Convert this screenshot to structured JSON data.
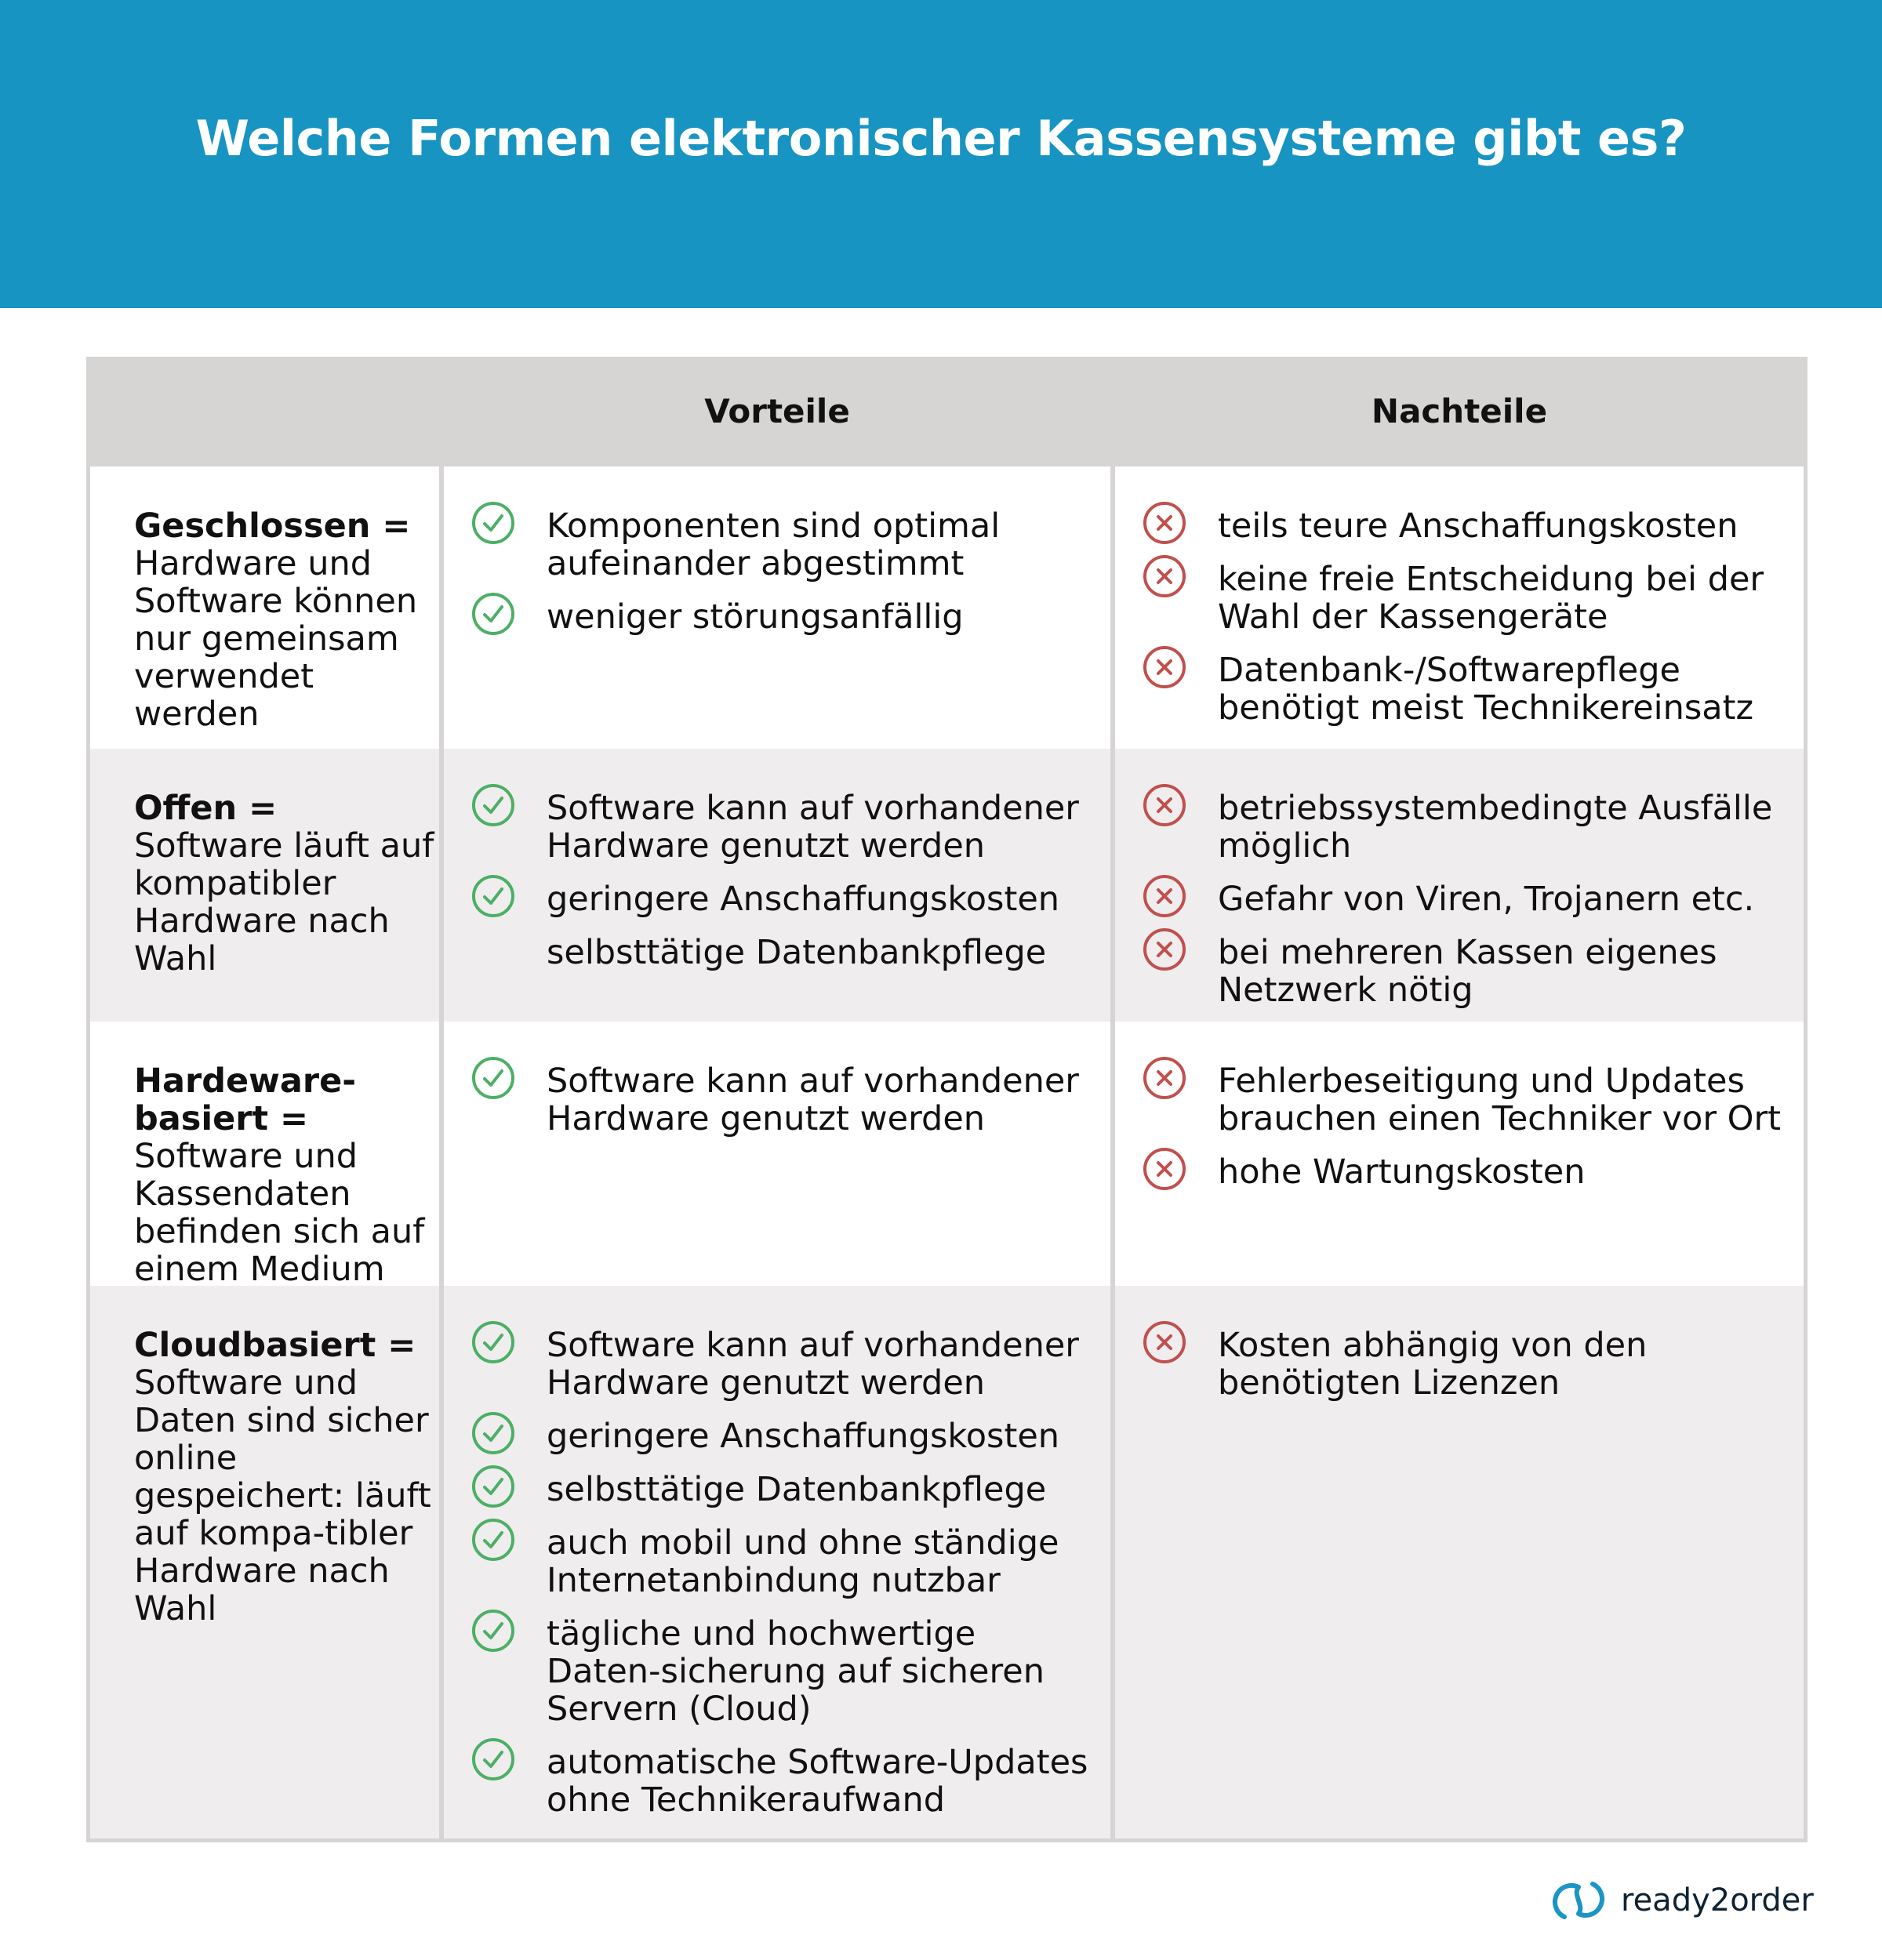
{
  "title": "Welche Formen elektronischer Kassensysteme gibt es?",
  "header": {
    "col1": "",
    "col2": "Vorteile",
    "col3": "Nachteile"
  },
  "colors": {
    "banner": "#1794c1",
    "pro": "#4caf65",
    "con": "#c0504d",
    "alt_row": "#efedee",
    "header_row": "#d6d5d4"
  },
  "rows": [
    {
      "name_bold": "Geschlossen =",
      "description": "Hardware und Software können nur gemeinsam verwendet werden",
      "pros": [
        {
          "text": "Komponenten sind optimal aufeinander abgestimmt",
          "icon": true
        },
        {
          "text": "weniger störungsanfällig",
          "icon": true
        }
      ],
      "cons": [
        {
          "text": "teils teure Anschaffungskosten",
          "icon": true
        },
        {
          "text": "keine freie Entscheidung bei der Wahl der Kassengeräte",
          "icon": true
        },
        {
          "text": "Datenbank-/Softwarepflege benötigt meist Technikereinsatz",
          "icon": true
        }
      ]
    },
    {
      "name_bold": "Offen =",
      "description": "Software läuft auf kompatibler Hardware nach Wahl",
      "pros": [
        {
          "text": "Software kann auf vorhandener Hardware genutzt werden",
          "icon": true
        },
        {
          "text": "geringere Anschaffungskosten",
          "icon": true
        },
        {
          "text": "selbsttätige Datenbankpflege",
          "icon": false
        }
      ],
      "cons": [
        {
          "text": "betriebssystembedingte Ausfälle möglich",
          "icon": true
        },
        {
          "text": "Gefahr von Viren, Trojanern etc.",
          "icon": true
        },
        {
          "text": "bei mehreren Kassen eigenes Netzwerk nötig",
          "icon": true
        }
      ]
    },
    {
      "name_bold": "Hardeware-basiert =",
      "description": "Software und Kassendaten befinden sich auf einem Medium",
      "pros": [
        {
          "text": "Software kann auf vorhandener Hardware genutzt werden",
          "icon": true
        }
      ],
      "cons": [
        {
          "text": "Fehlerbeseitigung und Updates brauchen einen Techniker vor Ort",
          "icon": true
        },
        {
          "text": "hohe Wartungskosten",
          "icon": true
        }
      ]
    },
    {
      "name_bold": "Cloudbasiert =",
      "description": "Software und Daten sind sicher online gespeichert: läuft auf kompa-tibler Hardware nach Wahl",
      "pros": [
        {
          "text": "Software kann auf vorhandener Hardware genutzt werden",
          "icon": true
        },
        {
          "text": "geringere Anschaffungskosten",
          "icon": true
        },
        {
          "text": "selbsttätige Datenbankpflege",
          "icon": true
        },
        {
          "text": "auch mobil und ohne ständige Internetanbindung nutzbar",
          "icon": true
        },
        {
          "text": "tägliche und hochwertige Daten-sicherung auf sicheren Servern (Cloud)",
          "icon": true
        },
        {
          "text": "automatische Software-Updates ohne Technikeraufwand",
          "icon": true
        }
      ],
      "cons": [
        {
          "text": "Kosten abhängig von den benötigten Lizenzen",
          "icon": true
        }
      ]
    }
  ],
  "logo": {
    "text": "ready2order"
  }
}
